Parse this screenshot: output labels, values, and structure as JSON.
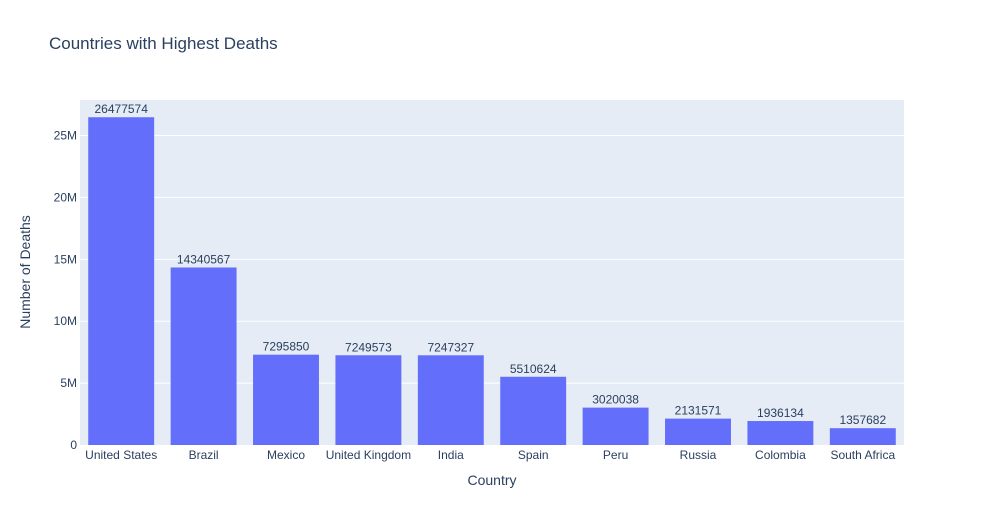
{
  "chart_data": {
    "type": "bar",
    "title": "Countries with Highest Deaths",
    "xlabel": "Country",
    "ylabel": "Number of Deaths",
    "categories": [
      "United States",
      "Brazil",
      "Mexico",
      "United Kingdom",
      "India",
      "Spain",
      "Peru",
      "Russia",
      "Colombia",
      "South Africa"
    ],
    "values": [
      26477574,
      14340567,
      7295850,
      7249573,
      7247327,
      5510624,
      3020038,
      2131571,
      1936134,
      1357682
    ],
    "data_labels": [
      "26477574",
      "14340567",
      "7295850",
      "7249573",
      "7247327",
      "5510624",
      "3020038",
      "2131571",
      "1936134",
      "1357682"
    ],
    "ylim": [
      0,
      27870000
    ],
    "yticks": [
      0,
      5000000,
      10000000,
      15000000,
      20000000,
      25000000
    ],
    "ytick_labels": [
      "0",
      "5M",
      "10M",
      "15M",
      "20M",
      "25M"
    ],
    "grid": true,
    "colors": {
      "bar": "#636efa",
      "plot_bg": "#e5ecf6",
      "grid": "#ffffff",
      "text": "#2a3f5f"
    }
  }
}
